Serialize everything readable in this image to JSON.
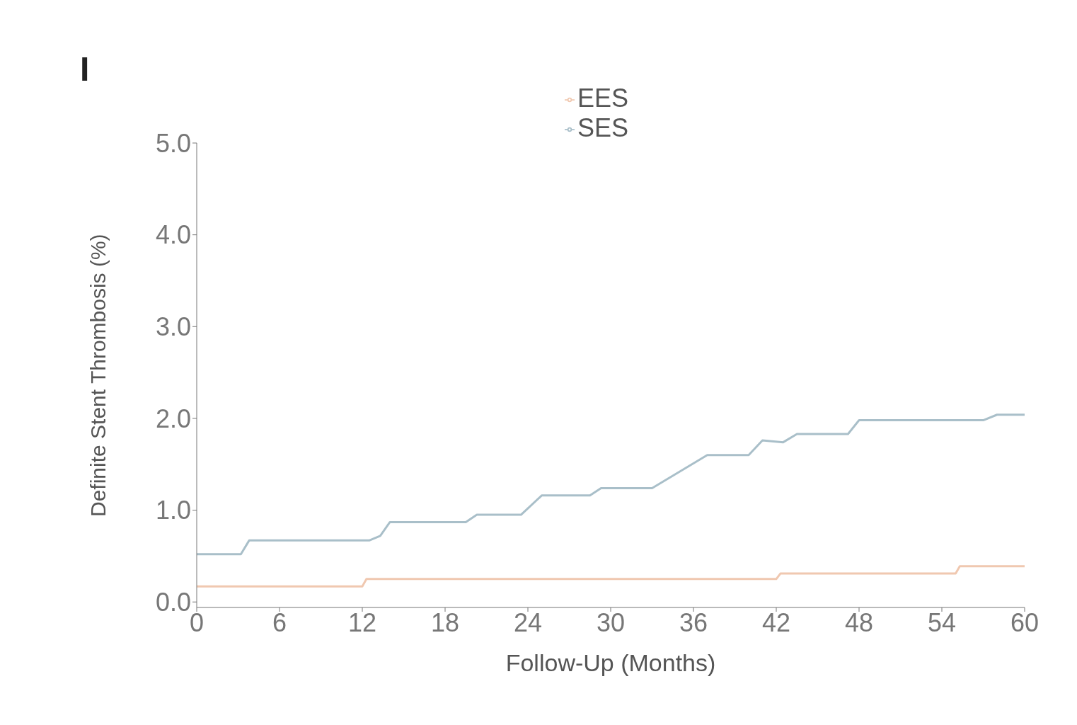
{
  "chart_data": {
    "type": "line",
    "xlabel": "Follow-Up (Months)",
    "ylabel": "Definite Stent Thrombosis (%)",
    "annotations": [
      "I"
    ],
    "xlim": [
      0,
      60
    ],
    "xticks": [
      0,
      6,
      12,
      18,
      24,
      30,
      36,
      42,
      48,
      54,
      60
    ],
    "ylim": [
      -0.06,
      5
    ],
    "yticks": [
      {
        "value": 0,
        "label": "0.0"
      },
      {
        "value": 1,
        "label": "1.0"
      },
      {
        "value": 2,
        "label": "2.0"
      },
      {
        "value": 3,
        "label": "3.0"
      },
      {
        "value": 4,
        "label": "4.0"
      },
      {
        "value": 5,
        "label": "5.0"
      }
    ],
    "legend": "top",
    "grid": false,
    "series": [
      {
        "name": "SES",
        "color": "#a9bfc9",
        "x": [
          0,
          3.2,
          3.8,
          12.5,
          13.3,
          14,
          19.5,
          20.3,
          23.5,
          25,
          28.5,
          29.3,
          33,
          37,
          40,
          41,
          42.5,
          43.5,
          47.2,
          48,
          57,
          58,
          60
        ],
        "values": [
          0.52,
          0.52,
          0.67,
          0.67,
          0.72,
          0.87,
          0.87,
          0.95,
          0.95,
          1.16,
          1.16,
          1.24,
          1.24,
          1.6,
          1.6,
          1.76,
          1.74,
          1.83,
          1.83,
          1.98,
          1.98,
          2.04,
          2.04
        ]
      },
      {
        "name": "EES",
        "color": "#f0c8b0",
        "x": [
          0,
          12,
          12.3,
          42,
          42.3,
          55,
          55.3,
          60
        ],
        "values": [
          0.17,
          0.17,
          0.25,
          0.25,
          0.31,
          0.31,
          0.39,
          0.39
        ]
      }
    ]
  }
}
